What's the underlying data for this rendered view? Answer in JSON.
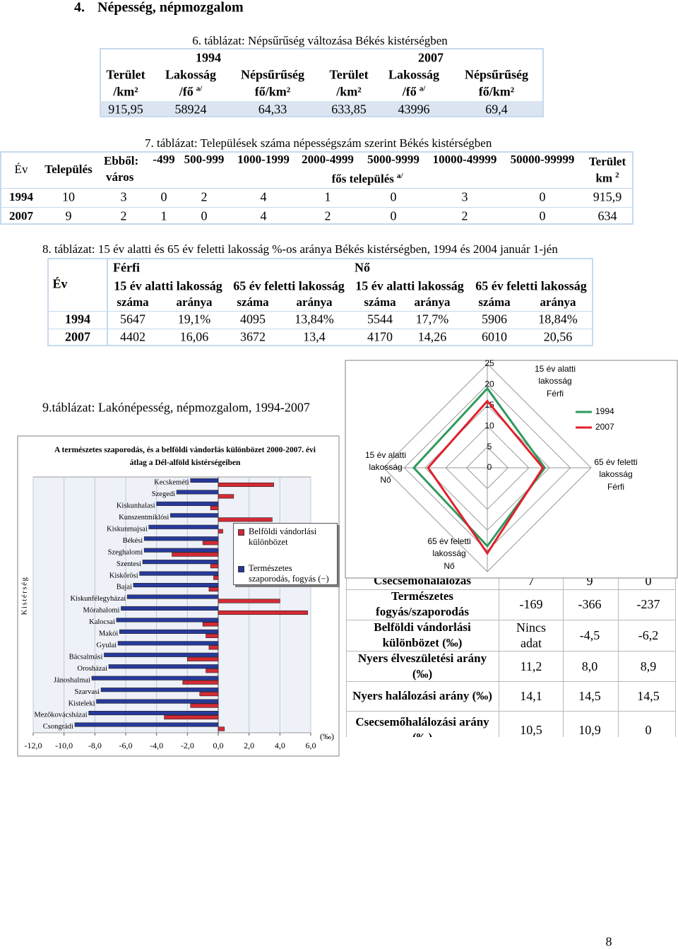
{
  "heading": {
    "number": "4.",
    "title": "Népesség, népmozgalom"
  },
  "table6": {
    "caption": "6. táblázat: Népsűrűség változása Békés kistérségben",
    "years": [
      "1994",
      "2007"
    ],
    "headers": [
      {
        "lines": [
          "Terület",
          "/km²"
        ]
      },
      {
        "lines": [
          "Lakosság",
          "/fő"
        ],
        "note": "a/"
      },
      {
        "lines": [
          "Népsűrűség",
          "fő/km²"
        ]
      },
      {
        "lines": [
          "Terület",
          "/km²"
        ]
      },
      {
        "lines": [
          "Lakosság",
          "/fő"
        ],
        "note": "a/"
      },
      {
        "lines": [
          "Népsűrűség",
          "fő/km²"
        ]
      }
    ],
    "row": [
      "915,95",
      "58924",
      "64,33",
      "633,85",
      "43996",
      "69,4"
    ]
  },
  "table7": {
    "caption": "7. táblázat: Települések száma népességszám szerint Békés kistérségben",
    "headers": {
      "year": "Év",
      "settlements": "Település",
      "towns": [
        "Ebből:",
        "város"
      ],
      "sizes": [
        "-499",
        "500-999",
        "1000-1999",
        "2000-4999",
        "5000-9999",
        "10000-49999",
        "50000-99999"
      ],
      "size_unit": "fős település",
      "size_note": "a/",
      "area": "Terület",
      "area_unit": "km",
      "area_sup": "2"
    },
    "rows": [
      {
        "year": "1994",
        "values": [
          "10",
          "3",
          "0",
          "2",
          "4",
          "1",
          "0",
          "3",
          "0",
          "915,9"
        ]
      },
      {
        "year": "2007",
        "values": [
          "9",
          "2",
          "1",
          "0",
          "4",
          "2",
          "0",
          "2",
          "0",
          "634"
        ]
      }
    ]
  },
  "table8": {
    "caption": "8. táblázat: 15 év alatti és 65 év feletti lakosság %-os aránya Békés kistérségben, 1994 és 2004 január 1-jén",
    "year": "Év",
    "groups": [
      "Férfi",
      "Nő"
    ],
    "subgroups": [
      "15 év alatti lakosság",
      "65 év feletti lakosság",
      "15 év alatti lakosság",
      "65 év feletti lakosság"
    ],
    "columns": [
      "száma",
      "aránya",
      "száma",
      "aránya",
      "száma",
      "aránya",
      "száma",
      "aránya"
    ],
    "rows": [
      {
        "year": "1994",
        "values": [
          "5647",
          "19,1%",
          "4095",
          "13,84%",
          "5544",
          "17,7%",
          "5906",
          "18,84%"
        ]
      },
      {
        "year": "2007",
        "values": [
          "4402",
          "16,06",
          "3672",
          "13,4",
          "4170",
          "14,26",
          "6010",
          "20,56"
        ]
      }
    ]
  },
  "table9": {
    "caption": "9.táblázat: Lakónépesség, népmozgalom, 1994-2007",
    "rows": [
      {
        "label": "Csecsemőhalálozás",
        "values": [
          "7",
          "9",
          "0"
        ]
      },
      {
        "label": "Természetes fogyás/szaporodás",
        "values": [
          "-169",
          "-366",
          "-237"
        ]
      },
      {
        "label": "Belföldi vándorlási különbözet (‰)",
        "values": [
          "Nincs adat",
          "-4,5",
          "-6,2"
        ]
      },
      {
        "label": "Nyers élveszületési arány (‰)",
        "values": [
          "11,2",
          "8,0",
          "8,9"
        ]
      },
      {
        "label": "Nyers halálozási arány (‰)",
        "values": [
          "14,1",
          "14,5",
          "14,5"
        ]
      },
      {
        "label": "Csecsemőhalálozási arány (‰)",
        "values": [
          "10,5",
          "10,9",
          "0"
        ]
      }
    ]
  },
  "chart_data": [
    {
      "type": "bar",
      "orientation": "horizontal",
      "title": "A természetes szaporodás, és a belföldi vándorlás különbözet 2000-2007. évi átlag a Dél-alföld kistérségeiben",
      "y_label": "Kistérség",
      "x_label": "(‰)",
      "categories": [
        "Kecskeméti",
        "Szegedi",
        "Kiskunhalasi",
        "Kunszentmiklósi",
        "Kiskunmajsai",
        "Békési",
        "Szeghalomi",
        "Szentesi",
        "Kiskőrösi",
        "Bajai",
        "Kiskunfélegyházai",
        "Mórahalomi",
        "Kalocsai",
        "Makói",
        "Gyulai",
        "Bácsalmási",
        "Orosházai",
        "Jánoshalmai",
        "Szarvasi",
        "Kisteleki",
        "Mezőkovácsházai",
        "Csongrádi"
      ],
      "series": [
        {
          "name": "Belföldi vándorlási különbözet",
          "color": "#d42a36",
          "values": [
            3.6,
            1.0,
            -0.5,
            3.5,
            0.3,
            -1.0,
            -3.0,
            -0.5,
            -0.3,
            -0.6,
            4.0,
            5.8,
            -1.0,
            -0.8,
            -0.6,
            -2.0,
            -0.8,
            -2.3,
            -1.2,
            -1.8,
            -3.5,
            0.4
          ]
        },
        {
          "name": "Természetes szaporodás, fogyás (−)",
          "color": "#27399a",
          "values": [
            -1.8,
            -2.7,
            -4.0,
            -3.1,
            -4.5,
            -4.8,
            -4.8,
            -4.9,
            -5.1,
            -5.5,
            -5.9,
            -6.3,
            -6.6,
            -6.4,
            -6.5,
            -7.4,
            -7.1,
            -8.2,
            -7.6,
            -7.9,
            -8.4,
            -9.3
          ]
        }
      ],
      "xlim": [
        -12,
        6
      ],
      "xticks": [
        {
          "value": -12,
          "label": "-12,0"
        },
        {
          "value": -10,
          "label": "-10,0"
        },
        {
          "value": -8,
          "label": "-8,0"
        },
        {
          "value": -6,
          "label": "-6,0"
        },
        {
          "value": -4,
          "label": "-4,0"
        },
        {
          "value": -2,
          "label": "-2,0"
        },
        {
          "value": 0,
          "label": "0,0"
        },
        {
          "value": 2,
          "label": "2,0"
        },
        {
          "value": 4,
          "label": "4,0"
        },
        {
          "value": 6,
          "label": "6,0"
        }
      ],
      "grid": true
    },
    {
      "type": "radar",
      "categories": [
        [
          "15 év alatti",
          "lakosság",
          "Férfi"
        ],
        [
          "65 év feletti",
          "lakosság",
          "Férfi"
        ],
        [
          "65 év feletti",
          "lakosság",
          "Nő"
        ],
        [
          "15 év alatti",
          "lakosság",
          "Nő"
        ]
      ],
      "series": [
        {
          "name": "1994",
          "color": "#2f9a5e",
          "values": [
            19.1,
            13.84,
            18.84,
            17.7
          ]
        },
        {
          "name": "2007",
          "color": "#e1202b",
          "values": [
            16.06,
            13.4,
            20.56,
            14.26
          ]
        }
      ],
      "ylim": [
        0,
        25
      ],
      "yticks": [
        0,
        5,
        10,
        15,
        20,
        25
      ],
      "grid": true
    }
  ],
  "page_number": "8"
}
